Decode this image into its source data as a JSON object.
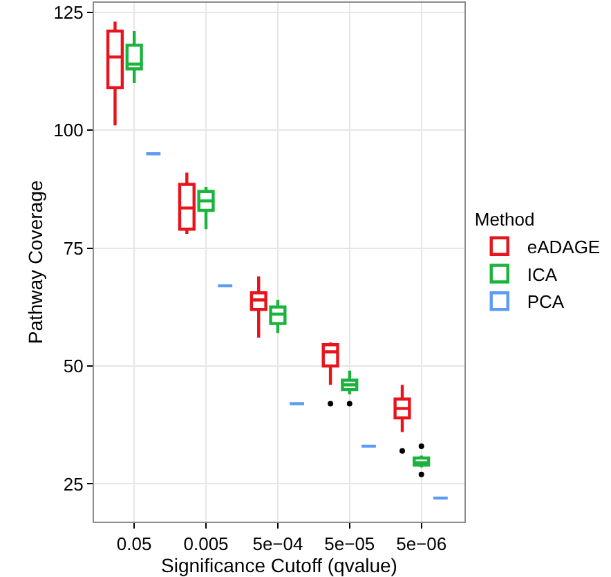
{
  "chart_data": {
    "type": "box",
    "xlabel": "Significance Cutoff (qvalue)",
    "ylabel": "Pathway Coverage",
    "legend_title": "Method",
    "legend": "right",
    "grid": true,
    "categories": [
      "0.05",
      "0.005",
      "5e−04",
      "5e−05",
      "5e−06"
    ],
    "ylim": [
      17,
      127
    ],
    "yticks": [
      25,
      50,
      75,
      100,
      125
    ],
    "series": [
      {
        "name": "eADAGE",
        "color": "#e8141c",
        "boxes": [
          {
            "low": 101,
            "q1": 109,
            "median": 115.5,
            "q3": 121,
            "high": 123
          },
          {
            "low": 78,
            "q1": 79,
            "median": 83.5,
            "q3": 88.5,
            "high": 91
          },
          {
            "low": 56,
            "q1": 62,
            "median": 64,
            "q3": 65.5,
            "high": 69
          },
          {
            "low": 46,
            "q1": 50,
            "median": 53,
            "q3": 54.5,
            "high": 55,
            "outliers": [
              42
            ]
          },
          {
            "low": 36,
            "q1": 39,
            "median": 41,
            "q3": 43,
            "high": 46,
            "outliers": [
              32
            ]
          }
        ]
      },
      {
        "name": "ICA",
        "color": "#1ab33c",
        "boxes": [
          {
            "low": 110,
            "q1": 113,
            "median": 114,
            "q3": 118,
            "high": 121
          },
          {
            "low": 79,
            "q1": 83,
            "median": 85,
            "q3": 87,
            "high": 88
          },
          {
            "low": 57,
            "q1": 59,
            "median": 61,
            "q3": 62.5,
            "high": 64
          },
          {
            "low": 44,
            "q1": 45,
            "median": 46,
            "q3": 47,
            "high": 49,
            "outliers": [
              42
            ]
          },
          {
            "low": 28.5,
            "q1": 29,
            "median": 29.5,
            "q3": 30.5,
            "high": 31,
            "outliers": [
              33,
              27
            ]
          }
        ]
      },
      {
        "name": "PCA",
        "color": "#5d9cf5",
        "boxes": [
          {
            "low": 95,
            "q1": 95,
            "median": 95,
            "q3": 95,
            "high": 95
          },
          {
            "low": 67,
            "q1": 67,
            "median": 67,
            "q3": 67,
            "high": 67
          },
          {
            "low": 42,
            "q1": 42,
            "median": 42,
            "q3": 42,
            "high": 42
          },
          {
            "low": 33,
            "q1": 33,
            "median": 33,
            "q3": 33,
            "high": 33
          },
          {
            "low": 22,
            "q1": 22,
            "median": 22,
            "q3": 22,
            "high": 22
          }
        ]
      }
    ]
  }
}
